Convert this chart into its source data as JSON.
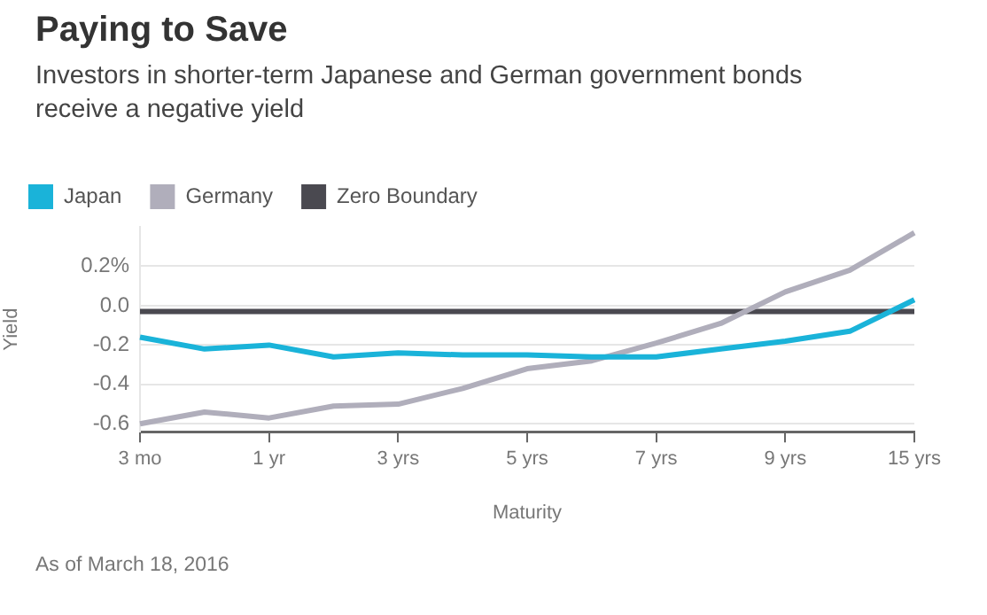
{
  "chart_data": {
    "type": "line",
    "title": "Paying to Save",
    "subtitle": "Investors in shorter-term Japanese and German government bonds receive a negative yield",
    "xlabel": "Maturity",
    "ylabel": "Yield",
    "annotations": [
      "As of March 18, 2016"
    ],
    "categories": [
      "3 mo",
      null,
      "1 yr",
      null,
      "3 yrs",
      null,
      "5 yrs",
      null,
      "7 yrs",
      null,
      "9 yrs",
      null,
      "15 yrs"
    ],
    "series": [
      {
        "name": "Japan",
        "color": "#1ab3d9",
        "values": [
          -0.16,
          -0.22,
          -0.2,
          -0.26,
          -0.24,
          -0.25,
          -0.25,
          -0.26,
          -0.26,
          -0.22,
          -0.18,
          -0.13,
          0.03
        ]
      },
      {
        "name": "Germany",
        "color": "#b0aebb",
        "values": [
          -0.6,
          -0.54,
          -0.57,
          -0.51,
          -0.5,
          -0.42,
          -0.32,
          -0.28,
          -0.19,
          -0.09,
          0.07,
          0.18,
          0.37
        ]
      },
      {
        "name": "Zero Boundary",
        "color": "#4a4950",
        "values": [
          -0.03,
          -0.03,
          -0.03,
          -0.03,
          -0.03,
          -0.03,
          -0.03,
          -0.03,
          -0.03,
          -0.03,
          -0.03,
          -0.03,
          -0.03
        ]
      }
    ],
    "ylim": [
      -0.64,
      0.4
    ],
    "yticks": [
      {
        "value": 0.2,
        "label": "0.2%"
      },
      {
        "value": 0,
        "label": "0.0"
      },
      -0.2,
      -0.4,
      -0.6
    ],
    "grid": "y",
    "legend": "top left",
    "marker": "none",
    "line_style": "solid"
  }
}
